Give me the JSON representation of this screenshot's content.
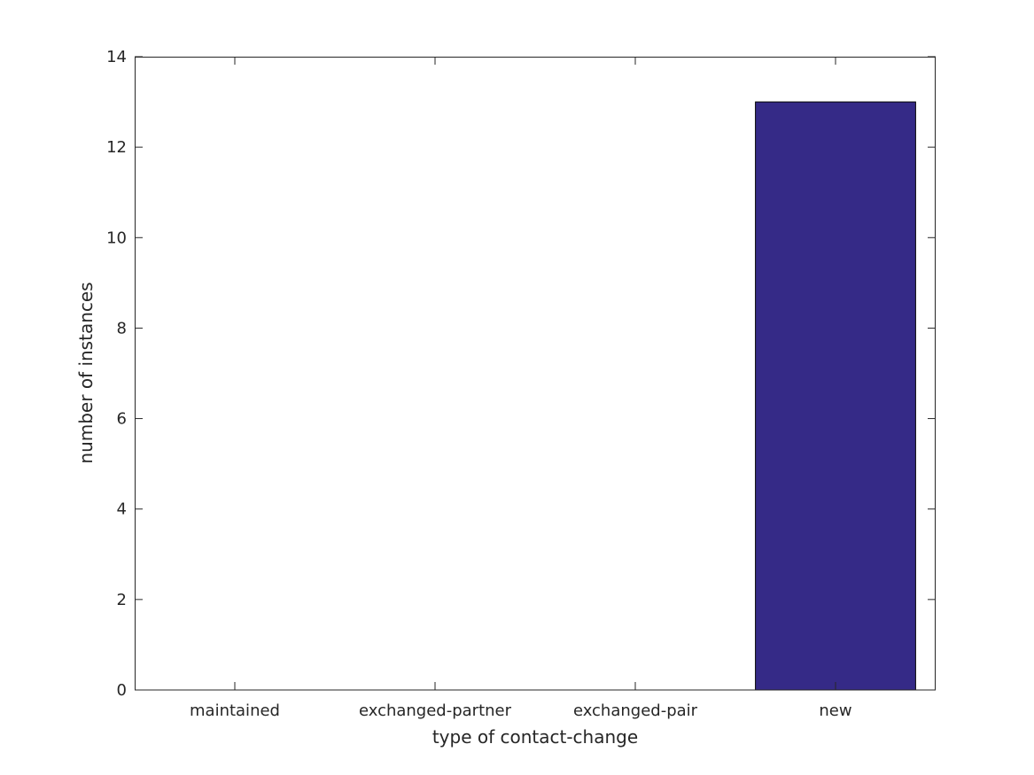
{
  "chart_data": {
    "type": "bar",
    "title": "",
    "xlabel": "type of contact-change",
    "ylabel": "number of instances",
    "categories": [
      "maintained",
      "exchanged-partner",
      "exchanged-pair",
      "new"
    ],
    "values": [
      0,
      0,
      0,
      13
    ],
    "ylim": [
      0,
      14
    ],
    "yticks": [
      0,
      2,
      4,
      6,
      8,
      10,
      12,
      14
    ],
    "grid": false,
    "legend": "none",
    "bar_color": "#352a87",
    "bar_edge_color": "#000000"
  }
}
